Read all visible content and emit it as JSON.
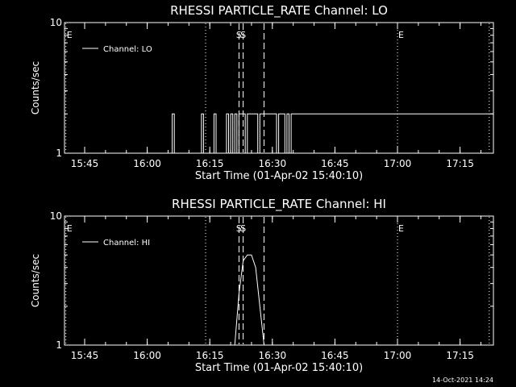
{
  "timestamp": "14-Oct-2021 14:24",
  "colors": {
    "background": "#000000",
    "foreground": "#ffffff"
  },
  "chart_data": [
    {
      "type": "line",
      "title": "RHESSI PARTICLE_RATE Channel: LO",
      "xlabel": "Start Time (01-Apr-02 15:40:10)",
      "ylabel": "Counts/sec",
      "yscale": "log",
      "ylim": [
        1,
        10
      ],
      "y_ticks": [
        {
          "value": 1,
          "label": "1"
        },
        {
          "value": 10,
          "label": "10"
        }
      ],
      "xlim": [
        "15:40:10",
        "17:23:00"
      ],
      "x_ticks": [
        "15:45",
        "16:00",
        "16:15",
        "16:30",
        "16:45",
        "17:00",
        "17:15"
      ],
      "legend": {
        "position": "top-left",
        "label": "Channel: LO"
      },
      "series": [
        {
          "name": "Channel: LO",
          "x": [
            "15:40:10",
            "16:06:00",
            "16:06:00",
            "16:06:30",
            "16:06:30",
            "16:13:00",
            "16:13:00",
            "16:13:30",
            "16:13:30",
            "16:16:00",
            "16:16:00",
            "16:16:30",
            "16:16:30",
            "16:19:00",
            "16:19:00",
            "16:19:30",
            "16:19:30",
            "16:20:00",
            "16:20:00",
            "16:20:30",
            "16:20:30",
            "16:21:00",
            "16:21:00",
            "16:21:30",
            "16:21:30",
            "16:22:00",
            "16:22:00",
            "16:23:30",
            "16:23:30",
            "16:24:00",
            "16:24:00",
            "16:26:30",
            "16:26:30",
            "16:27:00",
            "16:27:00",
            "16:31:00",
            "16:31:00",
            "16:31:30",
            "16:31:30",
            "16:33:00",
            "16:33:00",
            "16:33:30",
            "16:33:30",
            "16:34:00",
            "16:34:00",
            "16:34:30",
            "16:34:30",
            "17:23:00"
          ],
          "values": [
            1,
            1,
            2,
            2,
            1,
            1,
            2,
            2,
            1,
            1,
            2,
            2,
            1,
            1,
            2,
            2,
            1,
            1,
            2,
            2,
            1,
            1,
            2,
            2,
            1,
            1,
            2,
            2,
            1,
            1,
            2,
            2,
            1,
            1,
            2,
            2,
            1,
            1,
            2,
            2,
            1,
            1,
            2,
            2,
            1,
            1,
            2,
            2
          ]
        }
      ],
      "flare_markers": [
        {
          "time": "16:22:00",
          "label": "S"
        },
        {
          "time": "16:23:00",
          "label": "S"
        },
        {
          "time": "16:28:00",
          "label": ""
        }
      ],
      "eclipse_markers": [
        {
          "time": "15:40:30",
          "label": "E"
        },
        {
          "time": "16:14:00",
          "label": ""
        },
        {
          "time": "17:00:00",
          "label": "E"
        },
        {
          "time": "17:22:00",
          "label": ""
        }
      ]
    },
    {
      "type": "line",
      "title": "RHESSI PARTICLE_RATE Channel: HI",
      "xlabel": "Start Time (01-Apr-02 15:40:10)",
      "ylabel": "Counts/sec",
      "yscale": "log",
      "ylim": [
        1,
        10
      ],
      "y_ticks": [
        {
          "value": 1,
          "label": "1"
        },
        {
          "value": 10,
          "label": "10"
        }
      ],
      "xlim": [
        "15:40:10",
        "17:23:00"
      ],
      "x_ticks": [
        "15:45",
        "16:00",
        "16:15",
        "16:30",
        "16:45",
        "17:00",
        "17:15"
      ],
      "legend": {
        "position": "top-left",
        "label": "Channel: HI"
      },
      "series": [
        {
          "name": "Channel: HI",
          "x": [
            "15:40:10",
            "16:21:00",
            "16:22:00",
            "16:23:00",
            "16:24:00",
            "16:25:00",
            "16:26:00",
            "16:27:00",
            "16:28:00",
            "17:23:00"
          ],
          "values": [
            1,
            1,
            2.5,
            4.5,
            5,
            5,
            4,
            2,
            1,
            1
          ]
        }
      ],
      "flare_markers": [
        {
          "time": "16:22:00",
          "label": "S"
        },
        {
          "time": "16:23:00",
          "label": "S"
        },
        {
          "time": "16:28:00",
          "label": ""
        }
      ],
      "eclipse_markers": [
        {
          "time": "15:40:30",
          "label": "E"
        },
        {
          "time": "16:14:00",
          "label": ""
        },
        {
          "time": "17:00:00",
          "label": "E"
        },
        {
          "time": "17:22:00",
          "label": ""
        }
      ]
    }
  ]
}
